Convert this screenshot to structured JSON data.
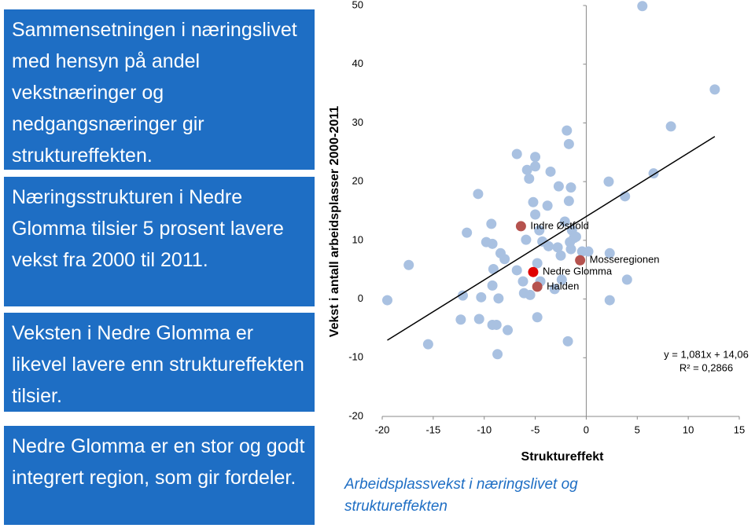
{
  "slide": {
    "boxes": [
      "Sammensetningen i næringslivet med hensyn på andel vekstnæringer og nedgangsnæringer gir struktureffekten.",
      "Næringsstrukturen i Nedre Glomma tilsier 5 prosent lavere vekst fra 2000 til 2011.",
      "Veksten i Nedre Glomma er likevel lavere enn struktureffekten tilsier.",
      "Nedre Glomma er en stor og godt integrert region, som gir fordeler."
    ],
    "caption": "Arbeidsplassvekst i næringslivet og struktureffekten"
  },
  "chart_data": {
    "type": "scatter",
    "xlabel": "Struktureffekt",
    "ylabel": "Vekst i antall arbeidsplasser 2000-2011",
    "xlim": [
      -20,
      15
    ],
    "ylim": [
      -20,
      50
    ],
    "xticks": [
      -20,
      -15,
      -10,
      -5,
      0,
      5,
      10,
      15
    ],
    "yticks": [
      -20,
      -10,
      0,
      10,
      20,
      30,
      40,
      50
    ],
    "series": [
      {
        "color": "#a9c1e1",
        "x": [
          -19.5,
          -17.4,
          -15.5,
          -12.1,
          -12.3,
          -11.7,
          -10.6,
          -10.5,
          -10.3,
          -9.8,
          -9.3,
          -9.2,
          -9.2,
          -9.2,
          -9.1,
          -8.8,
          -8.7,
          -8.6,
          -8.4,
          -8,
          -7.7,
          -6.8,
          -6.8,
          -6.2,
          -6.1,
          -5.9,
          -5.8,
          -5.6,
          -5.5,
          -5.2,
          -5,
          -5,
          -5,
          -4.8,
          -4.8,
          -4.6,
          -4.5,
          -4.3,
          -3.8,
          -3.7,
          -3.5,
          -3.1,
          -2.8,
          -2.7,
          -2.5,
          -2.4,
          -2.1,
          -1.9,
          -1.8,
          -1.7,
          -1.7,
          -1.6,
          -1.5,
          -1.5,
          -1.4,
          -1.2,
          -1,
          -0.4,
          0.2,
          2.2,
          2.3,
          2.3,
          3.8,
          4,
          5.5,
          6.6,
          8.3,
          12.6
        ],
        "y": [
          -0.2,
          5.8,
          -7.7,
          0.6,
          -3.5,
          11.3,
          17.9,
          -3.4,
          0.3,
          9.7,
          12.8,
          2.3,
          9.4,
          -4.4,
          5.1,
          -4.4,
          -9.4,
          0.1,
          7.8,
          6.8,
          -5.3,
          4.9,
          24.7,
          3,
          1,
          10.1,
          22,
          20.5,
          0.7,
          16.5,
          24.2,
          22.6,
          14.4,
          6.1,
          -3.1,
          11.7,
          3,
          9.8,
          15.9,
          9,
          21.7,
          1.7,
          8.8,
          19.2,
          7.4,
          3.3,
          13.2,
          28.7,
          -7.2,
          26.4,
          16.7,
          9.7,
          8.5,
          19,
          11.7,
          10.4,
          10.6,
          8.1,
          8.1,
          20,
          -0.2,
          7.8,
          17.5,
          3.3,
          49.9,
          21.4,
          29.4,
          35.7
        ]
      }
    ],
    "highlighted": [
      {
        "label": "Indre Østfold",
        "x": -6.4,
        "y": 12.4,
        "color": "#b5524e"
      },
      {
        "label": "Mosseregionen",
        "x": -0.6,
        "y": 6.6,
        "color": "#b5524e"
      },
      {
        "label": "Nedre Glomma",
        "x": -5.2,
        "y": 4.6,
        "color": "#e00000"
      },
      {
        "label": "Halden",
        "x": -4.8,
        "y": 2.1,
        "color": "#b5524e"
      }
    ],
    "trendline": {
      "slope": 1.081,
      "intercept": 14.06,
      "equation": "y = 1,081x + 14,06",
      "r2": "R² = 0,2866"
    }
  }
}
